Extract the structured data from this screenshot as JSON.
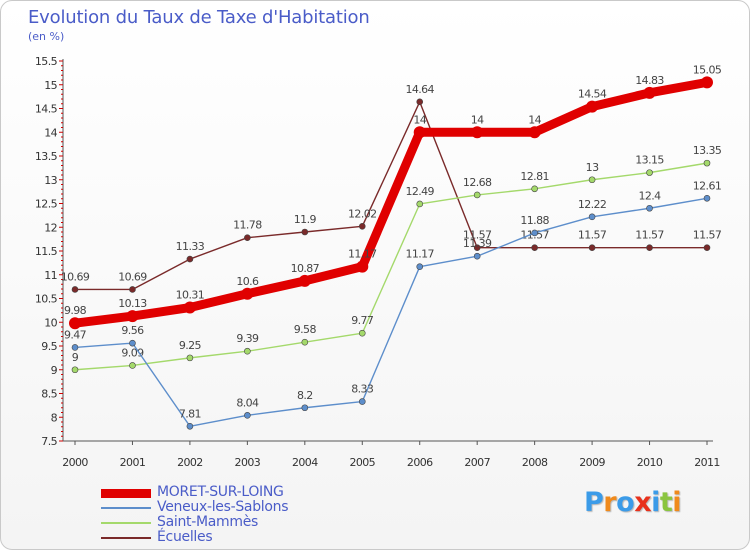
{
  "title": "Evolution du Taux de Taxe d'Habitation",
  "subtitle": "(en %)",
  "logo": {
    "letters": [
      "P",
      "r",
      "o",
      "x",
      "i",
      "t",
      "i"
    ],
    "colors": [
      "#3b9be8",
      "#f08a1c",
      "#3b9be8",
      "#e8311c",
      "#3b9be8",
      "#8bc53f",
      "#f08a1c"
    ]
  },
  "chart_data": {
    "type": "line",
    "categories": [
      "2000",
      "2001",
      "2002",
      "2003",
      "2004",
      "2005",
      "2006",
      "2007",
      "2008",
      "2009",
      "2010",
      "2011"
    ],
    "ylim": [
      7.5,
      15.5
    ],
    "yticks": [
      "7.5",
      "8",
      "8.5",
      "9",
      "9.5",
      "10",
      "10.5",
      "11",
      "11.5",
      "12",
      "12.5",
      "13",
      "13.5",
      "14",
      "14.5",
      "15",
      "15.5"
    ],
    "grid": false,
    "legend_position": "bottom-left",
    "series": [
      {
        "name": "MORET-SUR-LOING",
        "color": "#e00000",
        "width": 9,
        "marker": 6,
        "values": [
          9.98,
          10.13,
          10.31,
          10.6,
          10.87,
          11.17,
          14,
          14,
          14,
          14.54,
          14.83,
          15.05
        ],
        "labels": [
          "9.98",
          "10.13",
          "10.31",
          "10.6",
          "10.87",
          "11.17",
          "14",
          "14",
          "14",
          "14.54",
          "14.83",
          "15.05"
        ]
      },
      {
        "name": "Veneux-les-Sablons",
        "color": "#5d8ecb",
        "width": 1.4,
        "marker": 3,
        "values": [
          9.47,
          9.56,
          7.81,
          8.04,
          8.2,
          8.33,
          11.17,
          11.39,
          11.88,
          12.22,
          12.4,
          12.61
        ],
        "labels": [
          "9.47",
          "9.56",
          "7.81",
          "8.04",
          "8.2",
          "8.33",
          "11.17",
          "11.39",
          "11.88",
          "12.22",
          "12.4",
          "12.61"
        ]
      },
      {
        "name": "Saint-Mammès",
        "color": "#a4d96b",
        "width": 1.4,
        "marker": 3,
        "values": [
          9,
          9.09,
          9.25,
          9.39,
          9.58,
          9.77,
          12.49,
          12.68,
          12.81,
          13,
          13.15,
          13.35
        ],
        "labels": [
          "9",
          "9.09",
          "9.25",
          "9.39",
          "9.58",
          "9.77",
          "12.49",
          "12.68",
          "12.81",
          "13",
          "13.15",
          "13.35"
        ]
      },
      {
        "name": "Écuelles",
        "color": "#7a2a2a",
        "width": 1.4,
        "marker": 3,
        "values": [
          10.69,
          10.69,
          11.33,
          11.78,
          11.9,
          12.02,
          14.64,
          11.57,
          11.57,
          11.57,
          11.57,
          11.57
        ],
        "labels": [
          "10.69",
          "10.69",
          "11.33",
          "11.78",
          "11.9",
          "12.02",
          "14.64",
          "11.57",
          "11.57",
          "11.57",
          "11.57",
          "11.57"
        ]
      }
    ]
  }
}
